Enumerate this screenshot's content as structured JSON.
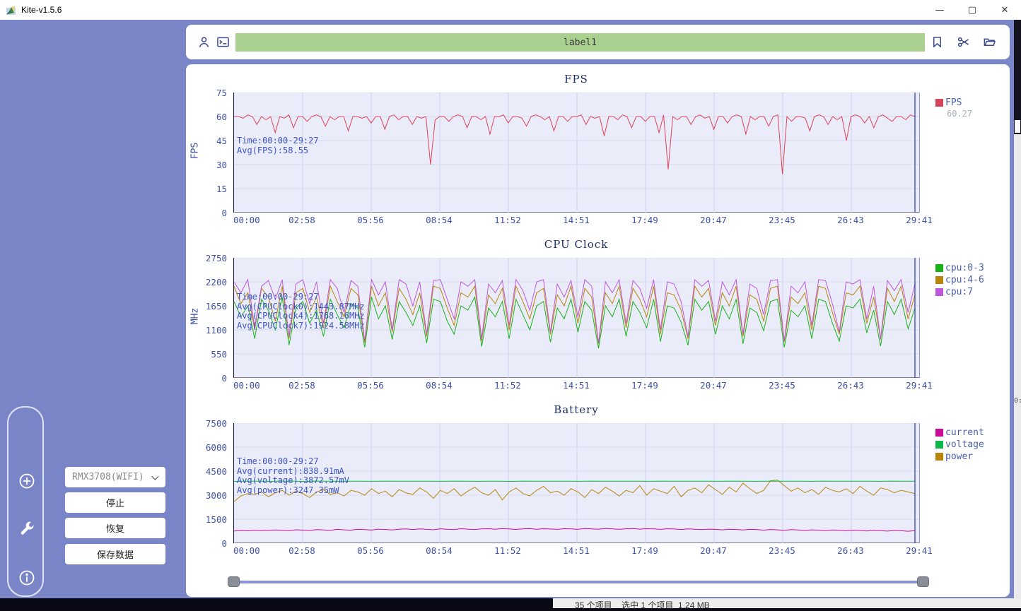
{
  "window": {
    "title": "Kite-v1.5.6",
    "controls": {
      "minimize": "—",
      "maximize": "▢",
      "close": "✕"
    }
  },
  "toolbar": {
    "label": "label1"
  },
  "controls_panel": {
    "device_select": "RMX3708(WIFI)",
    "stop_label": "停止",
    "resume_label": "恢复",
    "save_label": "保存数据"
  },
  "background_windows": {
    "explorer_status": "35 个项目    选中 1 个项目  1.24 MB",
    "right_fragment": "0:"
  },
  "colors": {
    "app_background": "#7a85c8",
    "label_bar": "#a9d08f",
    "plot_background": "#ebecf9",
    "fps_line": "#d9435a",
    "cpu0_line": "#19b219",
    "cpu4_line": "#b8860b",
    "cpu7_line": "#bd58dd",
    "current_line": "#cc0a9a",
    "voltage_line": "#0cb84a",
    "power_line": "#b8860b",
    "annotation_text": "#3b55c4",
    "cursor_line": "#2c3ab0"
  },
  "chart_data": [
    {
      "type": "line",
      "title": "FPS",
      "ylabel": "FPS",
      "ylim": [
        0,
        75
      ],
      "yticks": [
        0,
        15,
        30,
        45,
        60,
        75
      ],
      "x_categories": [
        "00:00",
        "02:58",
        "05:56",
        "08:54",
        "11:52",
        "14:51",
        "17:49",
        "20:47",
        "23:45",
        "26:43",
        "29:41"
      ],
      "grid": true,
      "legend_position": "right",
      "annotation": [
        "Time:00:00-29:27",
        "Avg(FPS):58.55"
      ],
      "legend": [
        {
          "name": "FPS",
          "color": "#d9435a",
          "value": "60.27"
        }
      ],
      "series": [
        {
          "name": "FPS",
          "color": "#d9435a",
          "values": [
            60,
            60,
            59,
            61,
            60,
            55,
            60,
            58,
            60,
            50,
            60,
            59,
            61,
            53,
            60,
            60,
            57,
            60,
            61,
            60,
            54,
            60,
            58,
            60,
            60,
            51,
            60,
            60,
            59,
            60,
            56,
            60,
            60,
            52,
            60,
            61,
            58,
            60,
            60,
            55,
            60,
            59,
            60,
            30,
            58,
            60,
            60,
            57,
            60,
            61,
            60,
            53,
            60,
            60,
            58,
            60,
            49,
            60,
            60,
            61,
            56,
            60,
            60,
            59,
            54,
            60,
            61,
            60,
            58,
            60,
            51,
            60,
            60,
            57,
            60,
            60,
            61,
            55,
            60,
            59,
            60,
            48,
            60,
            60,
            58,
            61,
            60,
            53,
            60,
            60,
            57,
            60,
            60,
            50,
            61,
            27,
            60,
            58,
            60,
            60,
            55,
            60,
            61,
            59,
            60,
            52,
            60,
            60,
            56,
            60,
            61,
            60,
            49,
            60,
            58,
            60,
            60,
            54,
            60,
            61,
            24,
            60,
            57,
            60,
            60,
            59,
            51,
            60,
            61,
            60,
            55,
            60,
            58,
            60,
            45,
            60,
            61,
            60,
            56,
            60,
            53,
            60,
            61,
            59,
            57,
            60,
            60,
            58,
            61,
            60
          ]
        }
      ]
    },
    {
      "type": "line",
      "title": "CPU Clock",
      "ylabel": "MHz",
      "ylim": [
        0,
        2750
      ],
      "yticks": [
        0,
        550,
        1100,
        1650,
        2200,
        2750
      ],
      "x_categories": [
        "00:00",
        "02:58",
        "05:56",
        "08:54",
        "11:52",
        "14:51",
        "17:49",
        "20:47",
        "23:45",
        "26:43",
        "29:41"
      ],
      "grid": true,
      "legend_position": "right",
      "annotation": [
        "Time:00:00-29:27",
        "Avg(CPUClock0):1443.87MHz",
        "Avg(CPUClock4):1768.16MHz",
        "Avg(CPUClock7):1924.58MHz"
      ],
      "legend": [
        {
          "name": "cpu:0-3",
          "color": "#19b219"
        },
        {
          "name": "cpu:4-6",
          "color": "#b8860b"
        },
        {
          "name": "cpu:7",
          "color": "#bd58dd"
        }
      ],
      "series": [
        {
          "name": "cpu:0-3",
          "color": "#19b219",
          "values": [
            1750,
            1400,
            1650,
            900,
            1800,
            1550,
            1100,
            1850,
            750,
            1600,
            1750,
            1250,
            1550,
            950,
            1800,
            1450,
            1150,
            1700,
            1600,
            700,
            1850,
            1350,
            1650,
            880,
            1750,
            1500,
            1200,
            1650,
            800,
            1800,
            1750,
            1300,
            1000,
            1650,
            1550,
            1850,
            720,
            1600,
            1400,
            1750,
            900,
            1800,
            1450,
            1100,
            1650,
            1750,
            820,
            1600,
            1350,
            1800,
            1050,
            1750,
            1550,
            680,
            1650,
            1400,
            1800,
            950,
            1750,
            1500,
            1150,
            1800,
            830,
            1650,
            1600,
            1280,
            750,
            1800,
            1550,
            1750,
            1000,
            1650,
            1350,
            1800,
            780,
            1600,
            1500,
            1080,
            1750,
            1800,
            700,
            1550,
            1400,
            1650,
            900,
            1800,
            1750,
            1250,
            840,
            1650,
            1600,
            1800,
            1030,
            1550,
            730,
            1750,
            1450,
            1800,
            1120,
            1600
          ]
        },
        {
          "name": "cpu:4-6",
          "color": "#b8860b",
          "values": [
            2100,
            1700,
            1950,
            1100,
            2050,
            1850,
            1300,
            2100,
            900,
            1950,
            2050,
            1500,
            1850,
            1150,
            2100,
            1750,
            1400,
            2050,
            1900,
            800,
            2100,
            1650,
            1950,
            1050,
            2050,
            1800,
            1450,
            1950,
            950,
            2100,
            2050,
            1600,
            1200,
            1950,
            1850,
            2100,
            850,
            1900,
            1700,
            2050,
            1100,
            2100,
            1750,
            1350,
            1950,
            2050,
            1000,
            1900,
            1650,
            2100,
            1250,
            2050,
            1850,
            780,
            1950,
            1700,
            2100,
            1150,
            2050,
            1800,
            1400,
            2100,
            1000,
            1950,
            1900,
            1550,
            900,
            2100,
            1850,
            2050,
            1200,
            1950,
            1650,
            2100,
            950,
            1900,
            1800,
            1300,
            2050,
            2100,
            820,
            1850,
            1700,
            1950,
            1100,
            2100,
            2050,
            1500,
            1000,
            1950,
            1900,
            2100,
            1250,
            1850,
            880,
            2050,
            1750,
            2100,
            1350,
            1900
          ]
        },
        {
          "name": "cpu:7",
          "color": "#bd58dd",
          "values": [
            2200,
            1950,
            2250,
            1150,
            2100,
            2230,
            1800,
            2250,
            950,
            2150,
            2250,
            1700,
            2200,
            1250,
            2250,
            2050,
            1500,
            2230,
            2100,
            850,
            2250,
            1900,
            2200,
            1100,
            2250,
            2150,
            1650,
            2200,
            1000,
            2230,
            2250,
            1800,
            1350,
            2200,
            2100,
            2250,
            900,
            2150,
            1950,
            2230,
            1200,
            2250,
            2000,
            1550,
            2200,
            2250,
            1050,
            2150,
            1850,
            2230,
            1400,
            2250,
            2100,
            800,
            2200,
            1950,
            2250,
            1250,
            2230,
            2050,
            1600,
            2250,
            1100,
            2200,
            2150,
            1750,
            950,
            2250,
            2100,
            2230,
            1300,
            2200,
            1900,
            2250,
            1000,
            2150,
            2050,
            1450,
            2230,
            2250,
            850,
            2100,
            1950,
            2200,
            1200,
            2250,
            2230,
            1700,
            1050,
            2200,
            2150,
            2250,
            1350,
            2100,
            900,
            2230,
            2000,
            2250,
            1500,
            2150
          ]
        }
      ]
    },
    {
      "type": "line",
      "title": "Battery",
      "ylabel": "",
      "ylim": [
        0,
        7500
      ],
      "yticks": [
        0,
        1500,
        3000,
        4500,
        6000,
        7500
      ],
      "x_categories": [
        "00:00",
        "02:58",
        "05:56",
        "08:54",
        "11:52",
        "14:51",
        "17:49",
        "20:47",
        "23:45",
        "26:43",
        "29:41"
      ],
      "grid": true,
      "legend_position": "right",
      "annotation": [
        "Time:00:00-29:27",
        "Avg(current):838.91mA",
        "Avg(voltage):3872.57mV",
        "Avg(power):3247.35mW"
      ],
      "legend": [
        {
          "name": "current",
          "color": "#cc0a9a"
        },
        {
          "name": "voltage",
          "color": "#0cb84a"
        },
        {
          "name": "power",
          "color": "#b8860b"
        }
      ],
      "series": [
        {
          "name": "power",
          "color": "#b8860b",
          "values": [
            2600,
            2950,
            3100,
            3050,
            3200,
            2900,
            3150,
            3300,
            3000,
            3250,
            3100,
            2850,
            3200,
            3350,
            3050,
            3150,
            2950,
            3300,
            3200,
            3000,
            3400,
            3100,
            3250,
            2900,
            3350,
            3150,
            3050,
            3450,
            3200,
            2800,
            3300,
            3100,
            3400,
            2950,
            3250,
            3500,
            3150,
            3000,
            3350,
            2700,
            3200,
            3450,
            3100,
            2950,
            3300,
            3550,
            3150,
            3250,
            3000,
            3400,
            3200,
            2850,
            3350,
            3100,
            3500,
            3250,
            2950,
            3300,
            3150,
            3600,
            3000,
            3400,
            3250,
            3100,
            3550,
            2900,
            3300,
            3450,
            3150,
            3650,
            3350,
            3050,
            3500,
            3200,
            3750,
            3400,
            3100,
            3300,
            3900,
            3950,
            3600,
            3250,
            3450,
            3150,
            3350,
            3050,
            3500,
            3300,
            3200,
            3400,
            3100,
            3550,
            3250,
            3000,
            3450,
            3350,
            3150,
            3300,
            3200,
            3100
          ]
        },
        {
          "name": "voltage",
          "color": "#0cb84a",
          "values": [
            3860,
            3868,
            3872,
            3865,
            3875,
            3870,
            3862,
            3878,
            3871,
            3866,
            3874,
            3869,
            3863,
            3877,
            3872,
            3867,
            3875,
            3870,
            3864,
            3876,
            3871,
            3866,
            3873,
            3868,
            3862,
            3877,
            3872,
            3867,
            3874,
            3869,
            3864,
            3878,
            3873,
            3868,
            3875,
            3870,
            3865,
            3877,
            3872,
            3867,
            3874,
            3869,
            3863,
            3876,
            3871,
            3866,
            3873,
            3868,
            3875,
            3870,
            3864,
            3877,
            3872,
            3867,
            3874,
            3869,
            3865,
            3876,
            3871,
            3870
          ]
        },
        {
          "name": "current",
          "color": "#cc0a9a",
          "values": [
            760,
            790,
            770,
            810,
            785,
            800,
            830,
            805,
            780,
            840,
            815,
            795,
            850,
            825,
            805,
            865,
            835,
            815,
            875,
            845,
            820,
            880,
            855,
            830,
            870,
            890,
            845,
            895,
            865,
            840,
            900,
            875,
            850,
            905,
            880,
            855,
            890,
            905,
            870,
            915,
            885,
            860,
            895,
            910,
            875,
            900,
            885,
            865,
            905,
            890,
            870,
            915,
            895,
            875,
            920,
            890,
            870,
            900,
            915,
            880,
            905,
            890,
            865,
            900,
            885,
            855,
            890,
            875,
            845,
            880,
            865,
            835,
            875,
            855,
            825,
            865,
            845,
            815,
            855,
            835,
            805,
            845,
            825,
            795,
            835,
            815,
            785,
            825,
            805,
            775,
            815,
            795,
            765,
            805,
            785,
            755,
            795,
            775,
            745,
            785
          ]
        }
      ]
    }
  ]
}
